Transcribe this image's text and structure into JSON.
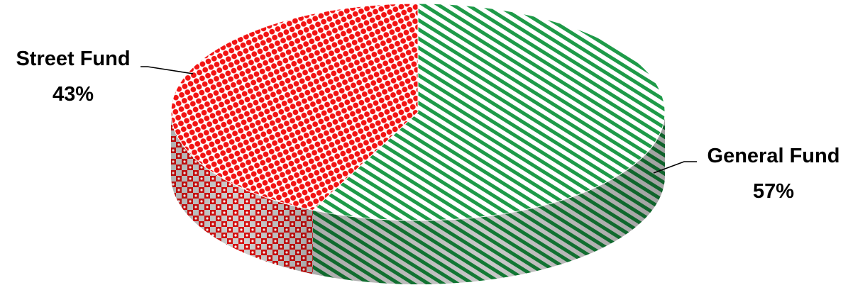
{
  "chart_data": {
    "type": "pie",
    "style": "3d",
    "title": "",
    "slices": [
      {
        "label": "General Fund",
        "percent_label": "57%",
        "value": 57,
        "color": "#1a9641",
        "pattern": "diagonal-stripes"
      },
      {
        "label": "Street Fund",
        "percent_label": "43%",
        "value": 43,
        "color": "#ff1a1a",
        "pattern": "dots"
      }
    ],
    "legend": "none",
    "data_labels": "outside-with-leader-lines"
  }
}
